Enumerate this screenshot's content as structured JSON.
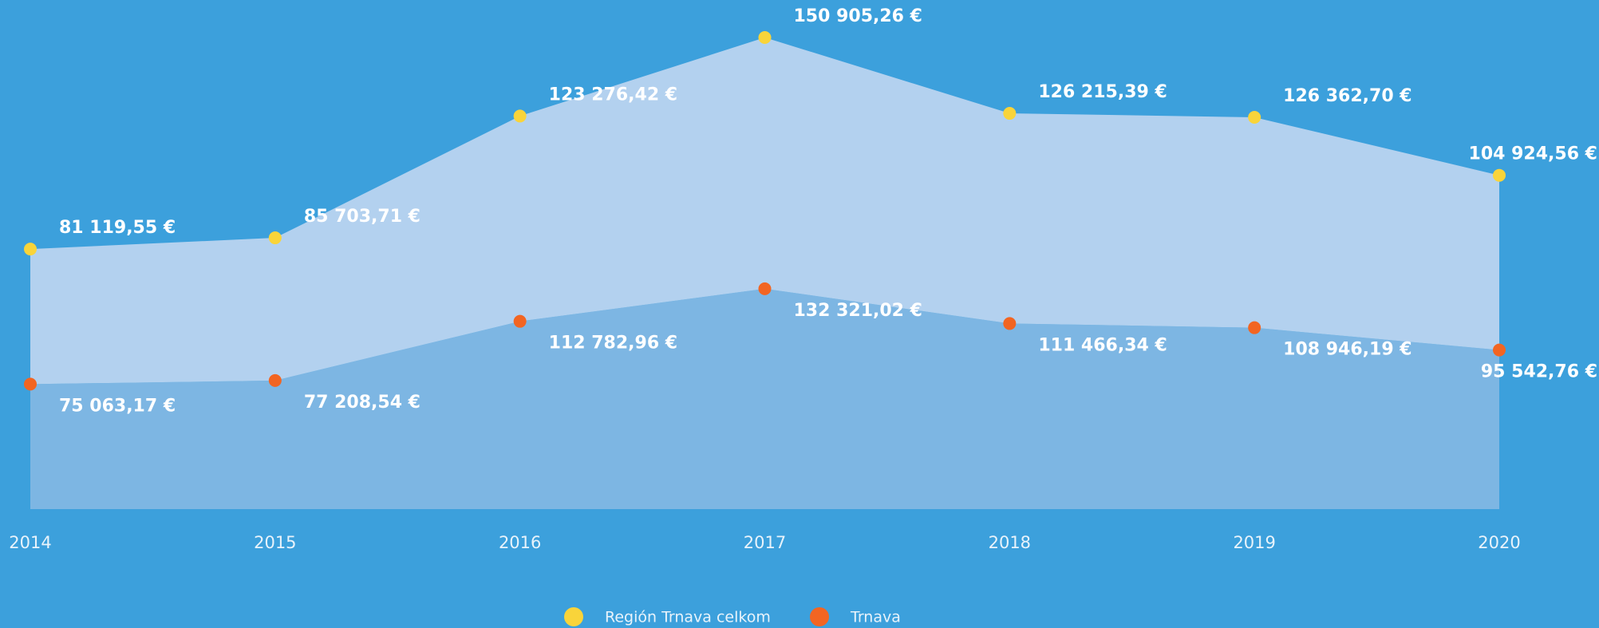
{
  "chart_data": {
    "type": "area",
    "stacked": true,
    "categories": [
      "2014",
      "2015",
      "2016",
      "2017",
      "2018",
      "2019",
      "2020"
    ],
    "series": [
      {
        "name": "Región Trnava celkom",
        "color": "#f9d43a",
        "fill": "#b3d1ef",
        "values": [
          81119.55,
          85703.71,
          123276.42,
          150905.26,
          126215.39,
          126362.7,
          104924.56
        ],
        "value_labels": [
          "81 119,55 €",
          "85 703,71 €",
          "123 276,42 €",
          "150 905,26 €",
          "126 215,39 €",
          "126 362,70 €",
          "104 924,56 €"
        ]
      },
      {
        "name": "Trnava",
        "color": "#f26522",
        "fill": "#7db6e3",
        "values": [
          75063.17,
          77208.54,
          112782.96,
          132321.02,
          111466.34,
          108946.19,
          95542.76
        ],
        "value_labels": [
          "75 063,17 €",
          "77 208,54 €",
          "112 782,96 €",
          "132 321,02 €",
          "111 466,34 €",
          "108 946,19 €",
          "95 542,76 €"
        ]
      }
    ],
    "ylim": [
      0,
      300000
    ]
  }
}
